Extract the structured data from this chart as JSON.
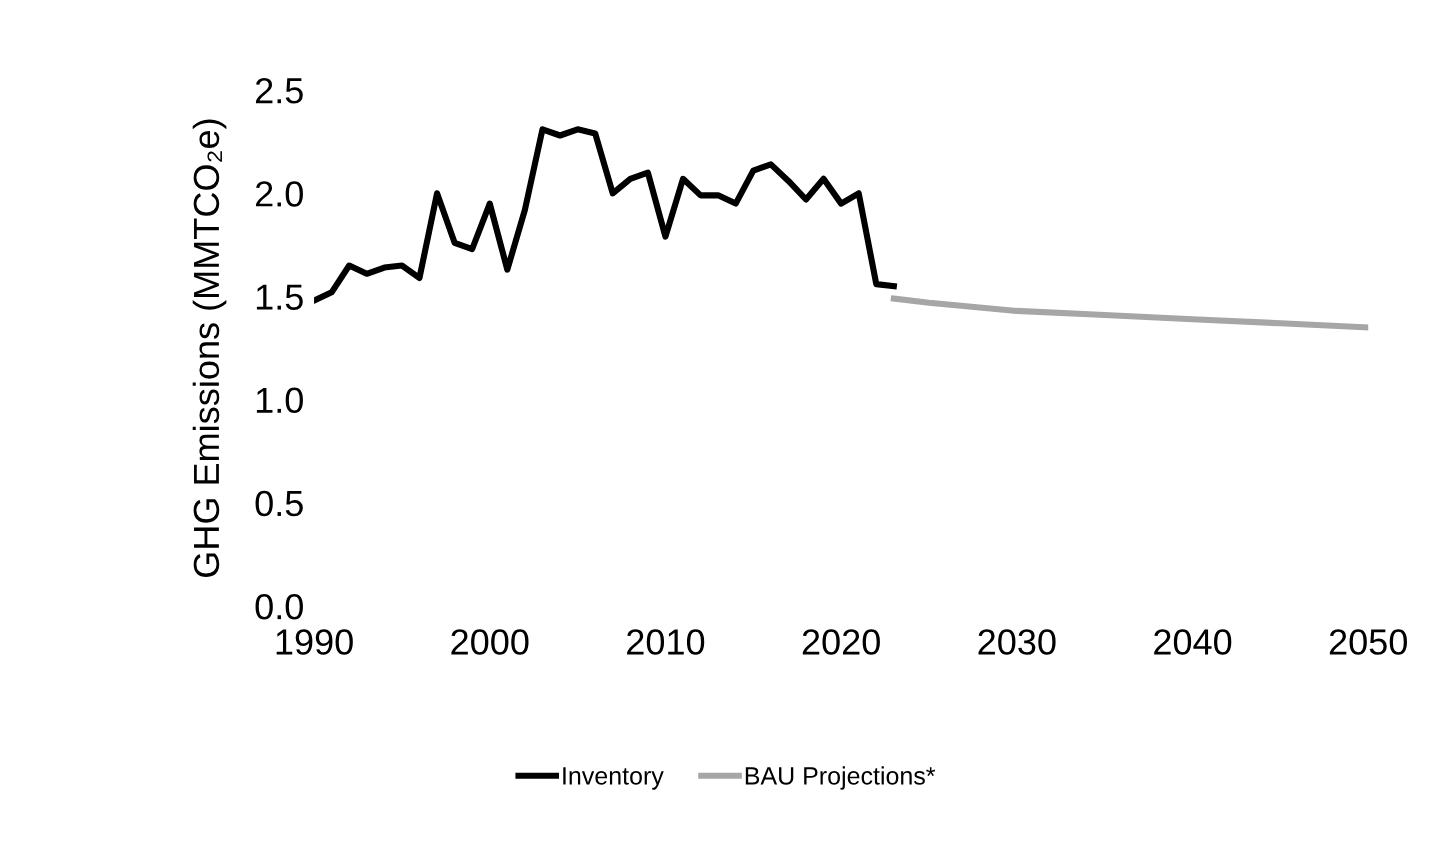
{
  "chart_data": {
    "type": "line",
    "ylabel": "GHG Emissions (MMTCO₂e)",
    "xlim": [
      1990,
      2050
    ],
    "xticks": [
      1990,
      2000,
      2010,
      2020,
      2030,
      2040,
      2050
    ],
    "ylim": [
      0,
      2.5
    ],
    "yticks": [
      {
        "value": 0,
        "label": "0.0"
      },
      {
        "value": 0.5,
        "label": "0.5"
      },
      {
        "value": 1,
        "label": "1.0"
      },
      {
        "value": 1.5,
        "label": "1.5"
      },
      {
        "value": 2,
        "label": "2.0"
      },
      {
        "value": 2.5,
        "label": "2.5"
      }
    ],
    "grid": false,
    "legend": "bottom",
    "marker": "none",
    "line_style": "solid",
    "series": [
      {
        "name": "Inventory",
        "color": "#000000",
        "x": [
          1990,
          1991,
          1992,
          1993,
          1994,
          1995,
          1996,
          1997,
          1998,
          1999,
          2000,
          2001,
          2002,
          2003,
          2004,
          2005,
          2006,
          2007,
          2008,
          2009,
          2010,
          2011,
          2012,
          2013,
          2014,
          2015,
          2016,
          2017,
          2018,
          2019,
          2020,
          2021,
          2022,
          2023
        ],
        "values": [
          1.48,
          1.52,
          1.65,
          1.61,
          1.64,
          1.65,
          1.59,
          2.0,
          1.76,
          1.73,
          1.95,
          1.63,
          1.92,
          2.31,
          2.28,
          2.31,
          2.29,
          2.0,
          2.07,
          2.1,
          1.79,
          2.07,
          1.99,
          1.99,
          1.95,
          2.11,
          2.14,
          2.06,
          1.97,
          2.07,
          1.95,
          2.0,
          1.56,
          1.55
        ]
      },
      {
        "name": "BAU Projections*",
        "color": "#a6a6a6",
        "x": [
          2023,
          2025,
          2030,
          2035,
          2040,
          2045,
          2050
        ],
        "values": [
          1.49,
          1.47,
          1.43,
          1.41,
          1.39,
          1.37,
          1.35
        ]
      }
    ]
  }
}
